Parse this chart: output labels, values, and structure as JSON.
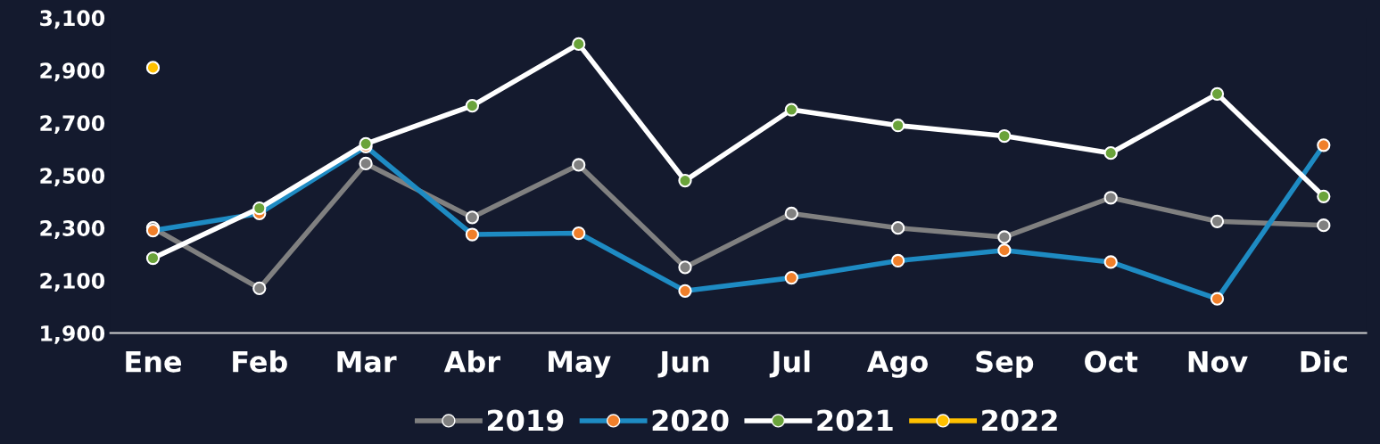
{
  "chart_data": {
    "type": "line",
    "categories": [
      "Ene",
      "Feb",
      "Mar",
      "Abr",
      "May",
      "Jun",
      "Jul",
      "Ago",
      "Sep",
      "Oct",
      "Nov",
      "Dic"
    ],
    "series": [
      {
        "name": "2019",
        "color": "#808080",
        "colors": [
          "#808080",
          "#808080",
          "#808080",
          "#808080",
          "#808080",
          "#808080",
          "#808080",
          "#808080",
          "#808080",
          "#808080",
          "#808080",
          "#808080"
        ],
        "values": [
          2300,
          2070,
          2545,
          2340,
          2540,
          2150,
          2355,
          2300,
          2265,
          2415,
          2325,
          2310
        ]
      },
      {
        "name": "2020",
        "color": "#1e8bc3",
        "colors": [
          "#f07f2a",
          "#f07f2a",
          "#f07f2a",
          "#f07f2a",
          "#f07f2a",
          "#f07f2a",
          "#f07f2a",
          "#f07f2a",
          "#f07f2a",
          "#f07f2a",
          "#f07f2a",
          "#f07f2a"
        ],
        "values": [
          2290,
          2355,
          2610,
          2275,
          2280,
          2060,
          2110,
          2175,
          2215,
          2170,
          2030,
          2615
        ]
      },
      {
        "name": "2021",
        "color": "#ffffff",
        "colors": [
          "#6aa33a",
          "#6aa33a",
          "#6aa33a",
          "#6aa33a",
          "#6aa33a",
          "#6aa33a",
          "#6aa33a",
          "#6aa33a",
          "#6aa33a",
          "#6aa33a",
          "#6aa33a",
          "#6aa33a"
        ],
        "values": [
          2185,
          2375,
          2620,
          2765,
          3000,
          2480,
          2750,
          2690,
          2650,
          2585,
          2810,
          2420
        ]
      },
      {
        "name": "2022",
        "color": "#ffc000",
        "colors": [
          "#ffc000",
          "#ffc000",
          "#ffc000",
          "#ffc000",
          "#ffc000",
          "#ffc000",
          "#ffc000",
          "#ffc000",
          "#ffc000",
          "#ffc000",
          "#ffc000",
          "#ffc000"
        ],
        "values": [
          2910,
          null,
          null,
          null,
          null,
          null,
          null,
          null,
          null,
          null,
          null,
          null
        ]
      }
    ],
    "ylim": [
      1900,
      3100
    ],
    "yticks": [
      {
        "value": 1900,
        "label": "1,900"
      },
      {
        "value": 2100,
        "label": "2,100"
      },
      {
        "value": 2300,
        "label": "2,300"
      },
      {
        "value": 2500,
        "label": "2,500"
      },
      {
        "value": 2700,
        "label": "2,700"
      },
      {
        "value": 2900,
        "label": "2,900"
      },
      {
        "value": 3100,
        "label": "3,100"
      }
    ],
    "legend": "bottom",
    "marker": "circle",
    "line_style": "solid"
  }
}
